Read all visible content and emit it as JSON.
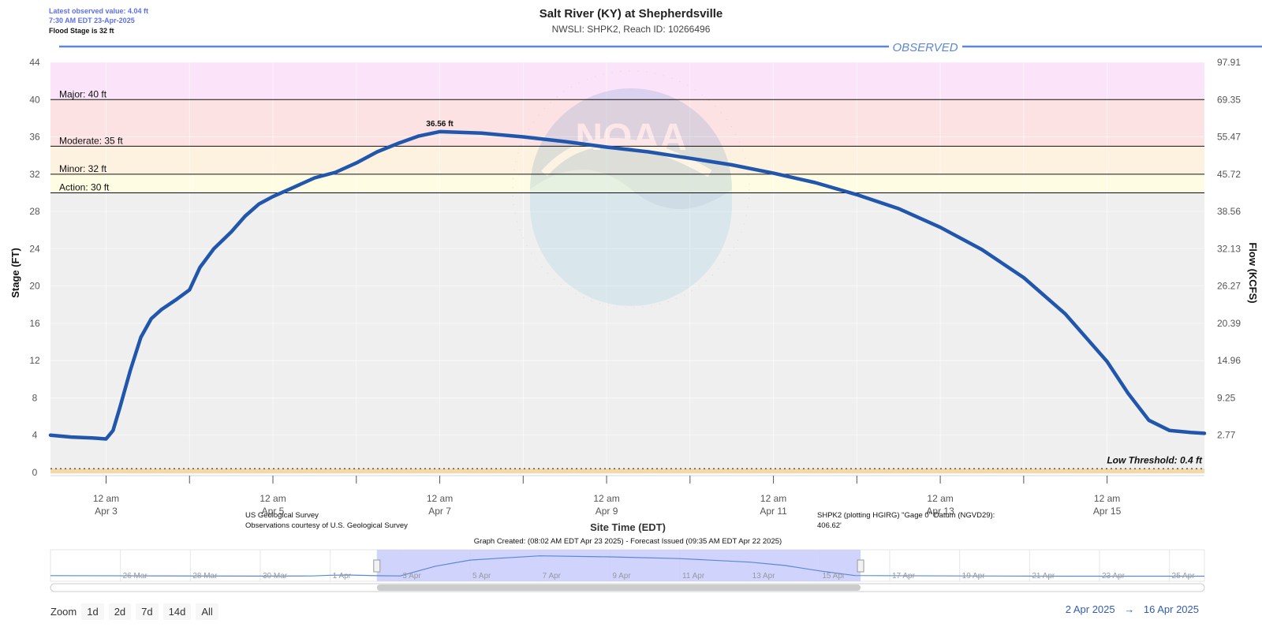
{
  "header": {
    "latest_value": "Latest observed value: 4.04 ft",
    "latest_time": "7:30 AM EDT 23-Apr-2025",
    "flood_stage": "Flood Stage is 32 ft",
    "title": "Salt River (KY) at Shepherdsville",
    "subtitle": "NWSLI: SHPK2, Reach ID: 10266496",
    "observed_label": "OBSERVED"
  },
  "footer": {
    "source_line1": "US Geological Survey",
    "source_line2": "Observations courtesy of U.S. Geological Survey",
    "datum_line1": "SHPK2 (plotting HGIRG) \"Gage 0\" Datum (NGVD29):",
    "datum_line2": "406.62'",
    "created": "Graph Created: (08:02 AM EDT Apr 23 2025) - Forecast Issued (09:35 AM EDT Apr 22 2025)"
  },
  "zoom": {
    "label": "Zoom",
    "buttons": [
      "1d",
      "2d",
      "7d",
      "14d",
      "All"
    ]
  },
  "range": {
    "from": "2 Apr 2025",
    "arrow": "→",
    "to": "16 Apr 2025"
  },
  "colors": {
    "major": "#fbe3f9",
    "moderate": "#fde2e4",
    "minor": "#fdf1df",
    "action": "#fefce3",
    "normal": "#efefef",
    "line": "#2156ad",
    "accent": "#5b87d6",
    "navigator": "#c8cdfb"
  },
  "chart_data": {
    "type": "line",
    "title": "Salt River (KY) at Shepherdsville",
    "xlabel": "Site Time (EDT)",
    "ylabel": "Stage (FT)",
    "ylabel_right": "Flow (KCFS)",
    "x_range": [
      "2025-04-02 08:00",
      "2025-04-16 04:00"
    ],
    "ylim": [
      0,
      44
    ],
    "yticks": [
      0,
      4,
      8,
      12,
      16,
      20,
      24,
      28,
      32,
      36,
      40,
      44
    ],
    "flow_ticks": [
      {
        "stage": 4,
        "label": "2.77"
      },
      {
        "stage": 8,
        "label": "9.25"
      },
      {
        "stage": 12,
        "label": "14.96"
      },
      {
        "stage": 16,
        "label": "20.39"
      },
      {
        "stage": 20,
        "label": "26.27"
      },
      {
        "stage": 24,
        "label": "32.13"
      },
      {
        "stage": 28,
        "label": "38.56"
      },
      {
        "stage": 32,
        "label": "45.72"
      },
      {
        "stage": 36,
        "label": "55.47"
      },
      {
        "stage": 40,
        "label": "69.35"
      },
      {
        "stage": 44,
        "label": "97.91"
      }
    ],
    "xticks": [
      {
        "date": "2025-04-03 00:00",
        "line1": "12 am",
        "line2": "Apr 3"
      },
      {
        "date": "2025-04-05 00:00",
        "line1": "12 am",
        "line2": "Apr 5"
      },
      {
        "date": "2025-04-07 00:00",
        "line1": "12 am",
        "line2": "Apr 7"
      },
      {
        "date": "2025-04-09 00:00",
        "line1": "12 am",
        "line2": "Apr 9"
      },
      {
        "date": "2025-04-11 00:00",
        "line1": "12 am",
        "line2": "Apr 11"
      },
      {
        "date": "2025-04-13 00:00",
        "line1": "12 am",
        "line2": "Apr 13"
      },
      {
        "date": "2025-04-15 00:00",
        "line1": "12 am",
        "line2": "Apr 15"
      }
    ],
    "minor_ticks": [
      "2025-04-04 00:00",
      "2025-04-06 00:00",
      "2025-04-08 00:00",
      "2025-04-10 00:00",
      "2025-04-12 00:00",
      "2025-04-14 00:00"
    ],
    "flood_categories": [
      {
        "name": "Major",
        "label": "Major: 40 ft",
        "stage": 40
      },
      {
        "name": "Moderate",
        "label": "Moderate: 35 ft",
        "stage": 35
      },
      {
        "name": "Minor",
        "label": "Minor: 32 ft",
        "stage": 32
      },
      {
        "name": "Action",
        "label": "Action: 30 ft",
        "stage": 30
      }
    ],
    "low_threshold": {
      "label": "Low Threshold: 0.4 ft",
      "stage": 0.4
    },
    "peak": {
      "date": "2025-04-07 00:00",
      "stage": 36.56,
      "label": "36.56 ft"
    },
    "series": [
      {
        "color": "#2156ad",
        "points": [
          [
            "2025-04-02 08:00",
            4.0
          ],
          [
            "2025-04-02 14:00",
            3.8
          ],
          [
            "2025-04-02 20:00",
            3.7
          ],
          [
            "2025-04-03 00:00",
            3.6
          ],
          [
            "2025-04-03 02:00",
            4.5
          ],
          [
            "2025-04-03 04:00",
            7.0
          ],
          [
            "2025-04-03 07:00",
            11.0
          ],
          [
            "2025-04-03 10:00",
            14.5
          ],
          [
            "2025-04-03 13:00",
            16.5
          ],
          [
            "2025-04-03 16:00",
            17.5
          ],
          [
            "2025-04-03 20:00",
            18.5
          ],
          [
            "2025-04-04 00:00",
            19.6
          ],
          [
            "2025-04-04 03:00",
            22.0
          ],
          [
            "2025-04-04 07:00",
            24.0
          ],
          [
            "2025-04-04 12:00",
            25.8
          ],
          [
            "2025-04-04 16:00",
            27.5
          ],
          [
            "2025-04-04 20:00",
            28.8
          ],
          [
            "2025-04-05 00:00",
            29.6
          ],
          [
            "2025-04-05 06:00",
            30.6
          ],
          [
            "2025-04-05 12:00",
            31.6
          ],
          [
            "2025-04-05 18:00",
            32.2
          ],
          [
            "2025-04-06 00:00",
            33.2
          ],
          [
            "2025-04-06 06:00",
            34.4
          ],
          [
            "2025-04-06 12:00",
            35.3
          ],
          [
            "2025-04-06 18:00",
            36.1
          ],
          [
            "2025-04-07 00:00",
            36.56
          ],
          [
            "2025-04-07 12:00",
            36.4
          ],
          [
            "2025-04-08 00:00",
            36.0
          ],
          [
            "2025-04-08 12:00",
            35.5
          ],
          [
            "2025-04-09 00:00",
            34.9
          ],
          [
            "2025-04-09 12:00",
            34.4
          ],
          [
            "2025-04-10 00:00",
            33.7
          ],
          [
            "2025-04-10 12:00",
            33.0
          ],
          [
            "2025-04-11 00:00",
            32.1
          ],
          [
            "2025-04-11 12:00",
            31.1
          ],
          [
            "2025-04-12 00:00",
            29.8
          ],
          [
            "2025-04-12 12:00",
            28.3
          ],
          [
            "2025-04-13 00:00",
            26.3
          ],
          [
            "2025-04-13 12:00",
            23.9
          ],
          [
            "2025-04-14 00:00",
            20.9
          ],
          [
            "2025-04-14 12:00",
            17.0
          ],
          [
            "2025-04-15 00:00",
            11.9
          ],
          [
            "2025-04-15 06:00",
            8.5
          ],
          [
            "2025-04-15 12:00",
            5.6
          ],
          [
            "2025-04-15 18:00",
            4.5
          ],
          [
            "2025-04-16 00:00",
            4.3
          ],
          [
            "2025-04-16 04:00",
            4.2
          ]
        ]
      }
    ],
    "navigator": {
      "x_range": [
        "2025-03-24 00:00",
        "2025-04-26 00:00"
      ],
      "labels": [
        {
          "date": "2025-03-26",
          "label": "26 Mar"
        },
        {
          "date": "2025-03-28",
          "label": "28 Mar"
        },
        {
          "date": "2025-03-30",
          "label": "30 Mar"
        },
        {
          "date": "2025-04-01",
          "label": "1 Apr"
        },
        {
          "date": "2025-04-03",
          "label": "3 Apr"
        },
        {
          "date": "2025-04-05",
          "label": "5 Apr"
        },
        {
          "date": "2025-04-07",
          "label": "7 Apr"
        },
        {
          "date": "2025-04-09",
          "label": "9 Apr"
        },
        {
          "date": "2025-04-11",
          "label": "11 Apr"
        },
        {
          "date": "2025-04-13",
          "label": "13 Apr"
        },
        {
          "date": "2025-04-15",
          "label": "15 Apr"
        },
        {
          "date": "2025-04-17",
          "label": "17 Apr"
        },
        {
          "date": "2025-04-19",
          "label": "19 Apr"
        },
        {
          "date": "2025-04-21",
          "label": "21 Apr"
        },
        {
          "date": "2025-04-23",
          "label": "23 Apr"
        },
        {
          "date": "2025-04-25",
          "label": "25 Apr"
        }
      ],
      "selected": [
        "2025-04-02 08:00",
        "2025-04-16 04:00"
      ],
      "points": [
        [
          "2025-03-24 00:00",
          4.2
        ],
        [
          "2025-03-27 00:00",
          3.8
        ],
        [
          "2025-03-30 00:00",
          3.4
        ],
        [
          "2025-03-31 12:00",
          3.6
        ],
        [
          "2025-04-01 00:00",
          4.8
        ],
        [
          "2025-04-01 12:00",
          5.2
        ],
        [
          "2025-04-02 08:00",
          4.0
        ],
        [
          "2025-04-03 00:00",
          3.6
        ],
        [
          "2025-04-04 00:00",
          19.6
        ],
        [
          "2025-04-05 00:00",
          29.6
        ],
        [
          "2025-04-06 00:00",
          33.2
        ],
        [
          "2025-04-07 00:00",
          36.56
        ],
        [
          "2025-04-09 00:00",
          34.9
        ],
        [
          "2025-04-11 00:00",
          32.1
        ],
        [
          "2025-04-13 00:00",
          26.3
        ],
        [
          "2025-04-14 00:00",
          20.9
        ],
        [
          "2025-04-15 00:00",
          11.9
        ],
        [
          "2025-04-16 00:00",
          4.3
        ],
        [
          "2025-04-19 00:00",
          3.6
        ],
        [
          "2025-04-22 00:00",
          3.3
        ],
        [
          "2025-04-26 00:00",
          3.2
        ]
      ]
    }
  }
}
